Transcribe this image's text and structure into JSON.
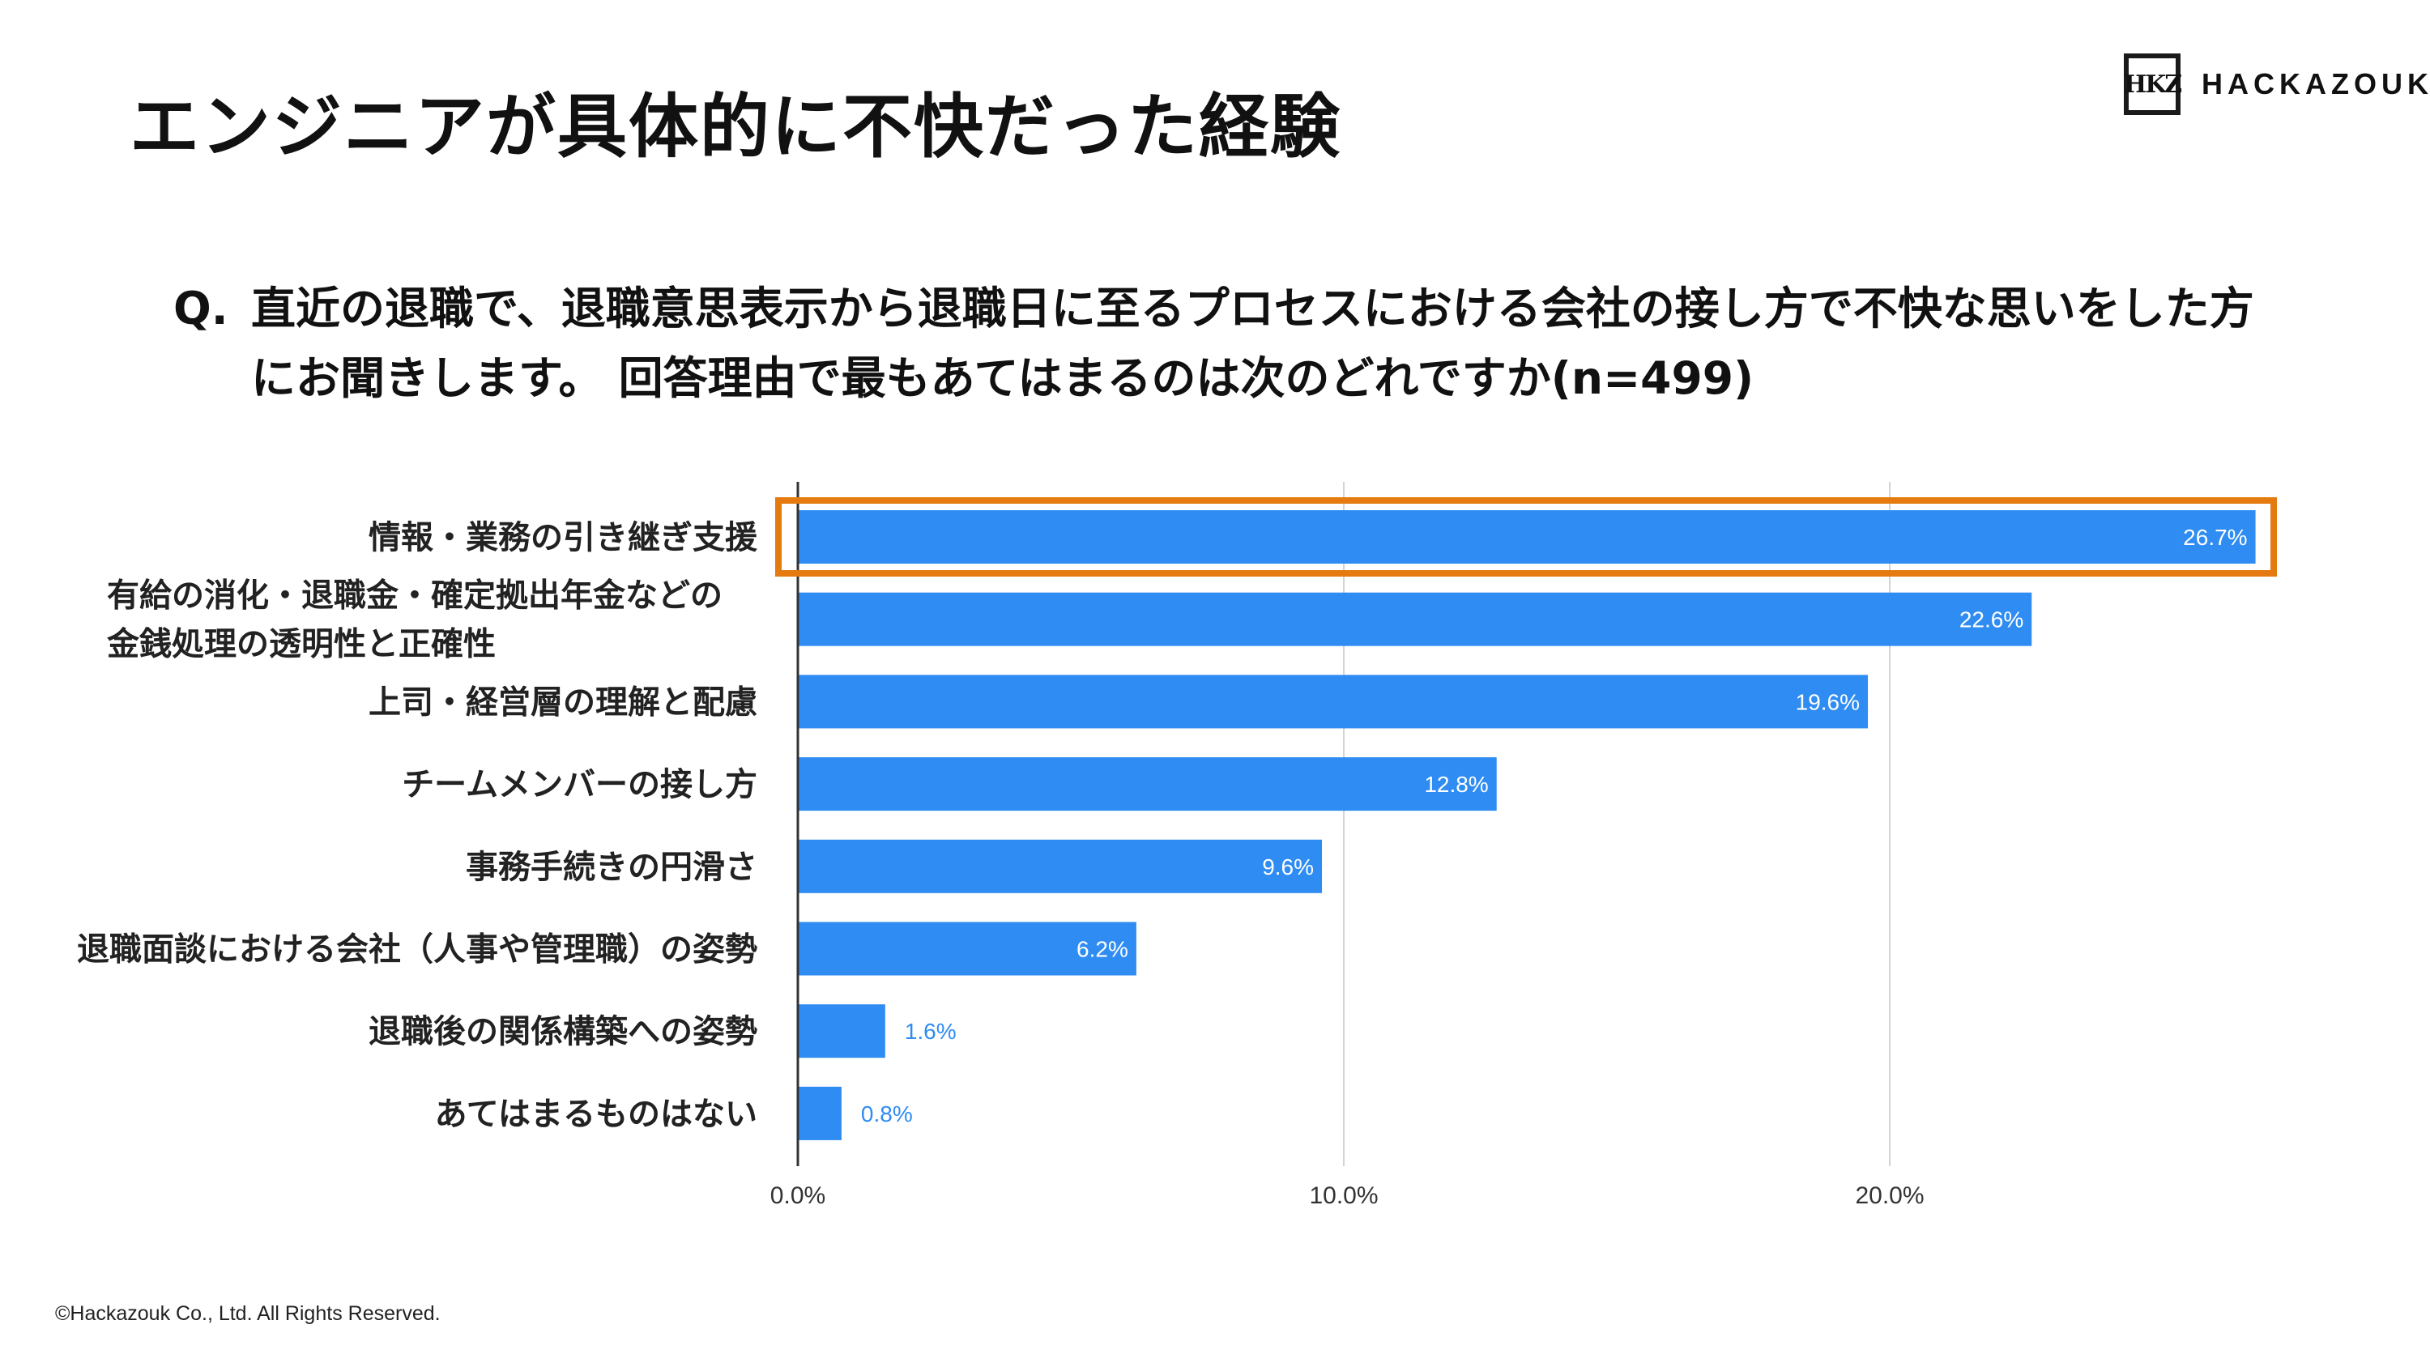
{
  "page": {
    "title": "エンジニアが具体的に不快だった経験",
    "logo_mark": "HKZ",
    "logo_text": "HACKAZOUK",
    "question_prefix": "Q.",
    "question_text": "直近の退職で、退職意思表示から退職日に至るプロセスにおける会社の接し方で不快な思いをした方にお聞きします。 回答理由で最もあてはまるのは次のどれですか(n=499)",
    "footer": "©Hackazouk Co., Ltd. All Rights Reserved."
  },
  "colors": {
    "bar": "#2f8cf2",
    "highlight": "#e57a10",
    "grid": "#d4d4d4",
    "axis": "#333333",
    "inside_label": "#ffffff",
    "outside_label": "#2f8cf2"
  },
  "chart_data": {
    "type": "bar",
    "orientation": "horizontal",
    "categories": [
      [
        "情報・業務の引き継ぎ支援"
      ],
      [
        "有給の消化・退職金・確定拠出年金などの",
        "金銭処理の透明性と正確性"
      ],
      [
        "上司・経営層の理解と配慮"
      ],
      [
        "チームメンバーの接し方"
      ],
      [
        "事務手続きの円滑さ"
      ],
      [
        "退職面談における会社（人事や管理職）の姿勢"
      ],
      [
        "退職後の関係構築への姿勢"
      ],
      [
        "あてはまるものはない"
      ]
    ],
    "values": [
      26.7,
      22.6,
      19.6,
      12.8,
      9.6,
      6.2,
      1.6,
      0.8
    ],
    "value_labels": [
      "26.7%",
      "22.6%",
      "19.6%",
      "12.8%",
      "9.6%",
      "6.2%",
      "1.6%",
      "0.8%"
    ],
    "xlim": [
      0,
      27
    ],
    "ticks": [
      0,
      10,
      20
    ],
    "tick_labels": [
      "0.0%",
      "10.0%",
      "20.0%"
    ],
    "grid": true,
    "highlighted_index": 0
  }
}
